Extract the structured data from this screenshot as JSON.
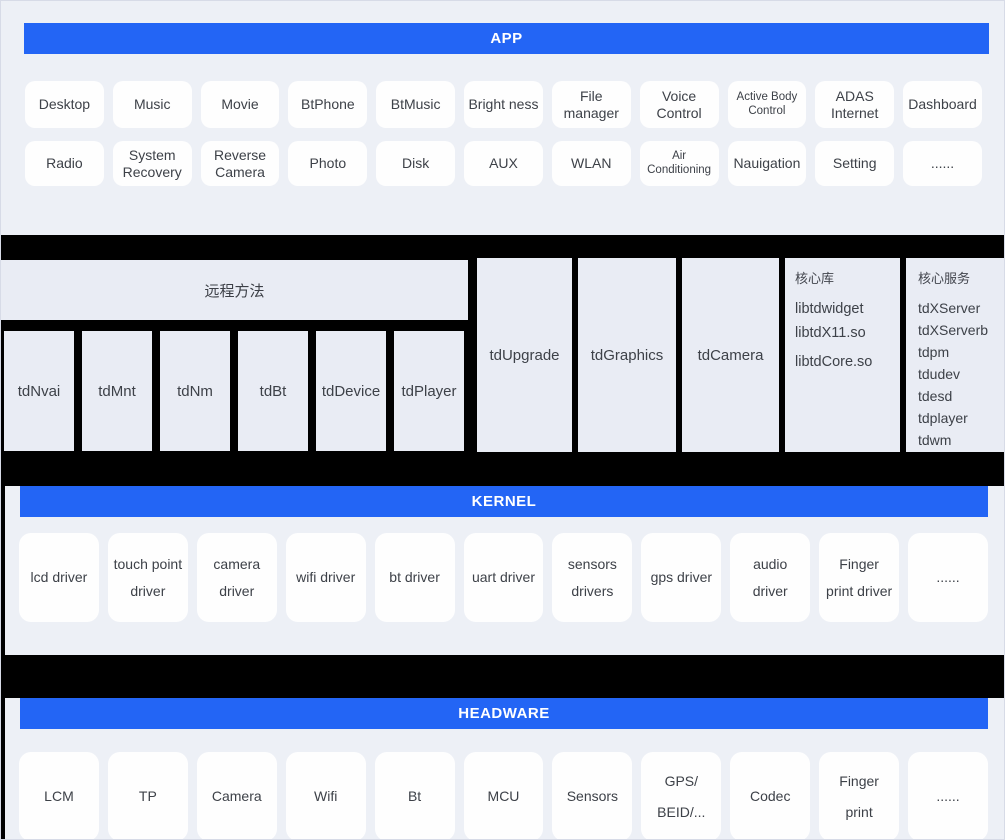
{
  "colors": {
    "accent": "#2365f5",
    "section-bg": "#edf0f6",
    "box-bg": "#e9ecf4"
  },
  "app": {
    "banner": "APP",
    "row1": [
      "Desktop",
      "Music",
      "Movie",
      "BtPhone",
      "BtMusic",
      "Bright ness",
      "File manager",
      "Voice Control",
      "Active Body Control",
      "ADAS Internet",
      "Dashboard"
    ],
    "row2": [
      "Radio",
      "System Recovery",
      "Reverse Camera",
      "Photo",
      "Disk",
      "AUX",
      "WLAN",
      "Air Conditioning",
      "Nauigation",
      "Setting",
      "......"
    ]
  },
  "middleware": {
    "remote_header": "远程方法",
    "modules": [
      "tdNvai",
      "tdMnt",
      "tdNm",
      "tdBt",
      "tdDevice",
      "tdPlayer"
    ],
    "services": [
      "tdUpgrade",
      "tdGraphics",
      "tdCamera"
    ],
    "core_lib": {
      "title": "核心库",
      "items": [
        "libtdwidget",
        "libtdX11.so",
        "libtdCore.so"
      ]
    },
    "core_services": {
      "title": "核心服务",
      "items": [
        "tdXServer",
        "tdXServerb",
        "tdpm",
        "tdudev",
        "tdesd",
        "tdplayer",
        "tdwm"
      ]
    }
  },
  "kernel": {
    "banner": "KERNEL",
    "items": [
      "lcd driver",
      "touch point driver",
      "camera driver",
      "wifi driver",
      "bt driver",
      "uart driver",
      "sensors drivers",
      "gps driver",
      "audio driver",
      "Finger print driver",
      "......"
    ]
  },
  "headware": {
    "banner": "HEADWARE",
    "items": [
      "LCM",
      "TP",
      "Camera",
      "Wifi",
      "Bt",
      "MCU",
      "Sensors",
      "GPS/ BEID/...",
      "Codec",
      "Finger print",
      "......"
    ]
  }
}
